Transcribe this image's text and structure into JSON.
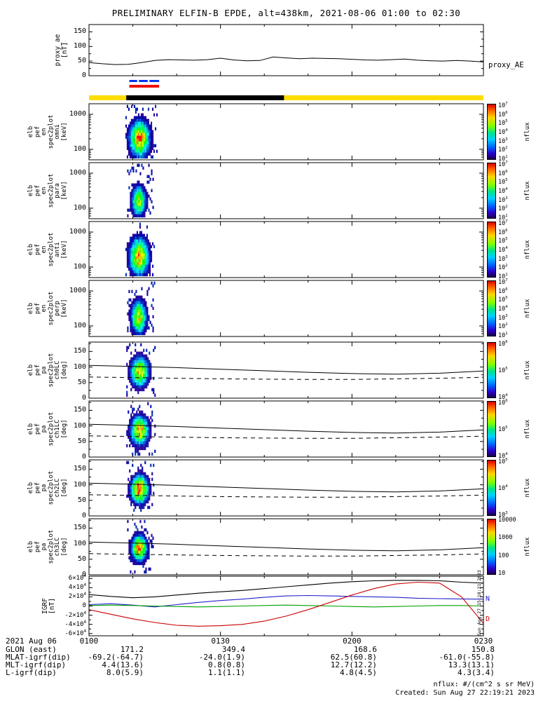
{
  "title": "PRELIMINARY ELFIN-B EPDE, alt=438km, 2021-08-06 01:00 to 02:30",
  "footer": {
    "units": "nflux: #/(cm^2 s sr MeV)",
    "created": "Created: Sun Aug 27 22:19:21 2023",
    "side_timestamp": "Sun Aug 27 15:18:21 2023"
  },
  "proxy_panel": {
    "ylabel_lines": [
      "proxy_ae",
      "[nT]"
    ],
    "yticks": [
      150,
      100,
      50,
      0
    ],
    "yrange": [
      0,
      175
    ],
    "right_label": "proxy_AE"
  },
  "energy_panels": [
    {
      "id": "omni",
      "ylabel_lines": [
        "elb",
        "pef",
        "en",
        "spec2plot",
        "omni",
        "[keV]"
      ],
      "yticks": [
        1000,
        100
      ],
      "cbar_ticks": [
        "10^7",
        "10^6",
        "10^5",
        "10^4",
        "10^3",
        "10^2",
        "10^1"
      ],
      "cbar_label": "nflux"
    },
    {
      "id": "para",
      "ylabel_lines": [
        "elb",
        "pef",
        "en",
        "spec2plot",
        "para",
        "[keV]"
      ],
      "yticks": [
        1000,
        100
      ],
      "cbar_ticks": [
        "10^7",
        "10^6",
        "10^5",
        "10^4",
        "10^3",
        "10^2",
        "10^1"
      ],
      "cbar_label": "nflux"
    },
    {
      "id": "anti",
      "ylabel_lines": [
        "elb",
        "pef",
        "en",
        "spec2plot",
        "anti",
        "[keV]"
      ],
      "yticks": [
        1000,
        100
      ],
      "cbar_ticks": [
        "10^7",
        "10^6",
        "10^5",
        "10^4",
        "10^3",
        "10^2",
        "10^1"
      ],
      "cbar_label": "nflux"
    },
    {
      "id": "perp",
      "ylabel_lines": [
        "elb",
        "pef",
        "en",
        "spec2plot",
        "perp",
        "[keV]"
      ],
      "yticks": [
        1000,
        100
      ],
      "cbar_ticks": [
        "10^7",
        "10^6",
        "10^5",
        "10^4",
        "10^3",
        "10^2",
        "10^1"
      ],
      "cbar_label": "nflux"
    }
  ],
  "pitch_panels": [
    {
      "id": "ch0LC",
      "ylabel_lines": [
        "elb",
        "pef",
        "pa",
        "spec2plot",
        "ch0LC",
        "[deg]"
      ],
      "yticks": [
        150,
        100,
        50,
        0
      ],
      "cbar_ticks": [
        "10^6",
        "10^5",
        "10^4"
      ],
      "cbar_label": "nflux"
    },
    {
      "id": "ch1LC",
      "ylabel_lines": [
        "elb",
        "pef",
        "pa",
        "spec2plot",
        "ch1LC",
        "[deg]"
      ],
      "yticks": [
        150,
        100,
        50,
        0
      ],
      "cbar_ticks": [
        "10^6",
        "10^5",
        "10^4"
      ],
      "cbar_label": "nflux"
    },
    {
      "id": "ch2LC",
      "ylabel_lines": [
        "elb",
        "pef",
        "pa",
        "spec2plot",
        "ch2LC",
        "[deg]"
      ],
      "yticks": [
        150,
        100,
        50,
        0
      ],
      "cbar_ticks": [
        "10^5",
        "10^4",
        "10^3"
      ],
      "cbar_label": "nflux"
    },
    {
      "id": "ch3LC",
      "ylabel_lines": [
        "elb",
        "pef",
        "pa",
        "spec2plot",
        "ch3LC",
        "[deg]"
      ],
      "yticks": [
        150,
        100,
        50,
        0
      ],
      "cbar_ticks": [
        "10000",
        "1000",
        "100",
        "10"
      ],
      "cbar_label": "nflux"
    }
  ],
  "igrf_panel": {
    "ylabel_lines": [
      "IGRF",
      "[nT]"
    ],
    "yticks": [
      "6×10^4",
      "4×10^4",
      "2×10^4",
      "0",
      "-2×10^4",
      "-4×10^4",
      "-6×10^4"
    ],
    "ytick_values": [
      60000,
      40000,
      20000,
      0,
      -20000,
      -40000,
      -60000
    ],
    "line_labels": [
      {
        "text": "N",
        "color": "#2222cc",
        "value": 15000
      },
      {
        "text": "D",
        "color": "#cc0000",
        "value": -30000
      }
    ]
  },
  "xaxis": {
    "date_label": "2021 Aug 06",
    "ticks": [
      "0100",
      "0130",
      "0200",
      "0230"
    ],
    "tick_minutes": [
      0,
      30,
      60,
      90
    ]
  },
  "ephemeris_rows": [
    {
      "label": "GLON (east)",
      "values": [
        "171.2",
        "349.4",
        "168.6",
        "150.8"
      ]
    },
    {
      "label": "MLAT-igrf(dip)",
      "values": [
        "-69.2(-64.7)",
        "-24.0(1.9)",
        "62.5(60.8)",
        "-61.0(-55.8)"
      ]
    },
    {
      "label": "MLT-igrf(dip)",
      "values": [
        "4.4(13.6)",
        "0.8(0.8)",
        "12.7(12.2)",
        "13.3(13.1)"
      ]
    },
    {
      "label": "L-igrf(dip)",
      "values": [
        "8.0(5.9)",
        "1.1(1.1)",
        "4.8(4.5)",
        "4.3(3.4)"
      ]
    }
  ],
  "chart_data": {
    "type": "multi-panel-spectrogram",
    "title": "PRELIMINARY ELFIN-B EPDE, alt=438km, 2021-08-06 01:00 to 02:30",
    "time_range_min": [
      0,
      90
    ],
    "time_ticks": [
      "0100",
      "0130",
      "0200",
      "0230"
    ],
    "proxy_ae": {
      "type": "line",
      "ylabel": "proxy_ae [nT]",
      "ylim": [
        0,
        175
      ],
      "x_min": [
        0,
        3,
        6,
        9,
        12,
        15,
        18,
        21,
        24,
        27,
        30,
        33,
        36,
        39,
        42,
        45,
        48,
        51,
        54,
        57,
        60,
        63,
        66,
        69,
        72,
        75,
        78,
        81,
        84,
        87,
        90
      ],
      "y": [
        45,
        41,
        38,
        39,
        45,
        52,
        55,
        54,
        53,
        55,
        60,
        54,
        51,
        52,
        64,
        61,
        58,
        60,
        59,
        58,
        56,
        54,
        53,
        55,
        57,
        53,
        51,
        50,
        52,
        50,
        47
      ]
    },
    "status_bars": {
      "blue_segments_min": [
        [
          9.2,
          11.0
        ],
        [
          11.4,
          13.4
        ],
        [
          13.8,
          16.0
        ]
      ],
      "red_segment_min": [
        9.2,
        16.0
      ],
      "yellow_segment_min": [
        0,
        90
      ],
      "black_segment_min": [
        8.5,
        44.5
      ]
    },
    "energy_spectrograms": {
      "type": "heatmap",
      "ylog_range_kev": [
        50,
        2000
      ],
      "colorbar_log10_range": [
        1,
        7
      ],
      "burst_time_min": [
        8.3,
        15.6
      ],
      "panels": [
        {
          "name": "omni",
          "tc": 11.4,
          "thw": 2.0,
          "t0": 8.3,
          "t1": 15.6,
          "yc": 0.6,
          "yhw": 0.3,
          "peak": 0.86,
          "seed": 1
        },
        {
          "name": "para",
          "tc": 11.2,
          "thw": 1.4,
          "t0": 8.7,
          "t1": 14.6,
          "yc": 0.66,
          "yhw": 0.25,
          "peak": 0.68,
          "seed": 2
        },
        {
          "name": "anti",
          "tc": 11.3,
          "thw": 1.9,
          "t0": 8.3,
          "t1": 15.2,
          "yc": 0.6,
          "yhw": 0.3,
          "peak": 0.85,
          "seed": 3
        },
        {
          "name": "perp",
          "tc": 11.2,
          "thw": 1.5,
          "t0": 8.7,
          "t1": 14.8,
          "yc": 0.63,
          "yhw": 0.27,
          "peak": 0.74,
          "seed": 4
        }
      ]
    },
    "pitch_spectrograms": {
      "type": "heatmap",
      "y_range_deg": [
        0,
        180
      ],
      "panels": [
        {
          "name": "ch0LC",
          "tc": 11.4,
          "thw": 1.8,
          "t0": 8.5,
          "t1": 15.0,
          "yc": 0.5,
          "yhw": 0.24,
          "peak": 0.78,
          "seed": 5
        },
        {
          "name": "ch1LC",
          "tc": 11.4,
          "thw": 1.8,
          "t0": 8.5,
          "t1": 15.0,
          "yc": 0.5,
          "yhw": 0.23,
          "peak": 0.84,
          "seed": 6
        },
        {
          "name": "ch2LC",
          "tc": 11.4,
          "thw": 1.7,
          "t0": 8.5,
          "t1": 14.8,
          "yc": 0.5,
          "yhw": 0.22,
          "peak": 0.97,
          "seed": 7
        },
        {
          "name": "ch3LC",
          "tc": 11.3,
          "thw": 1.5,
          "t0": 8.7,
          "t1": 14.6,
          "yc": 0.5,
          "yhw": 0.21,
          "peak": 0.9,
          "seed": 8
        }
      ],
      "loss_cone_lines": {
        "x_min": [
          0,
          10,
          20,
          30,
          40,
          50,
          60,
          70,
          80,
          90
        ],
        "solid_deg": [
          105,
          102,
          98,
          93,
          88,
          83,
          79,
          77,
          80,
          87
        ],
        "dashed_deg": [
          68,
          66,
          64,
          62,
          61,
          60,
          60,
          62,
          64,
          67
        ]
      }
    },
    "igrf": {
      "type": "line",
      "ylabel": "IGRF [nT]",
      "ylim": [
        -65000,
        65000
      ],
      "x_min": [
        0,
        5,
        10,
        15,
        20,
        25,
        30,
        35,
        40,
        45,
        50,
        55,
        60,
        65,
        70,
        75,
        80,
        85,
        90
      ],
      "series": [
        {
          "name": "Btotal",
          "color": "#000000",
          "y": [
            25000,
            21000,
            18000,
            20000,
            24000,
            28000,
            31000,
            34000,
            38000,
            42000,
            46000,
            50000,
            53000,
            55000,
            56000,
            56000,
            55000,
            52000,
            50000
          ]
        },
        {
          "name": "N",
          "color": "#2222cc",
          "y": [
            3000,
            5000,
            2000,
            -2000,
            3000,
            8000,
            12000,
            15000,
            19000,
            22000,
            23000,
            22000,
            21000,
            20000,
            19000,
            17000,
            16000,
            15500,
            15000
          ]
        },
        {
          "name": "E",
          "color": "#00a000",
          "y": [
            1000,
            2000,
            1000,
            0,
            -1000,
            -2000,
            -1000,
            0,
            1000,
            2000,
            1000,
            0,
            -1000,
            -2000,
            -1000,
            0,
            1000,
            1000,
            0
          ]
        },
        {
          "name": "D",
          "color": "#cc0000",
          "y": [
            -8000,
            -18000,
            -28000,
            -36000,
            -42000,
            -44000,
            -43000,
            -40000,
            -33000,
            -22000,
            -8000,
            8000,
            24000,
            38000,
            48000,
            52000,
            50000,
            20000,
            -38000
          ]
        }
      ]
    }
  }
}
